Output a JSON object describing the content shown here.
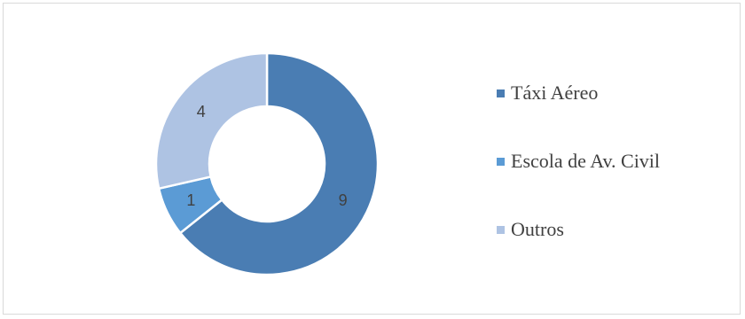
{
  "chart_data": {
    "type": "pie",
    "variant": "donut",
    "categories": [
      "Táxi Aéreo",
      "Escola de Av. Civil",
      "Outros"
    ],
    "values": [
      9,
      1,
      4
    ],
    "data_labels": [
      "9",
      "1",
      "4"
    ],
    "colors": [
      "#4a7db3",
      "#5b9bd5",
      "#aec3e3"
    ],
    "legend_position": "right"
  }
}
